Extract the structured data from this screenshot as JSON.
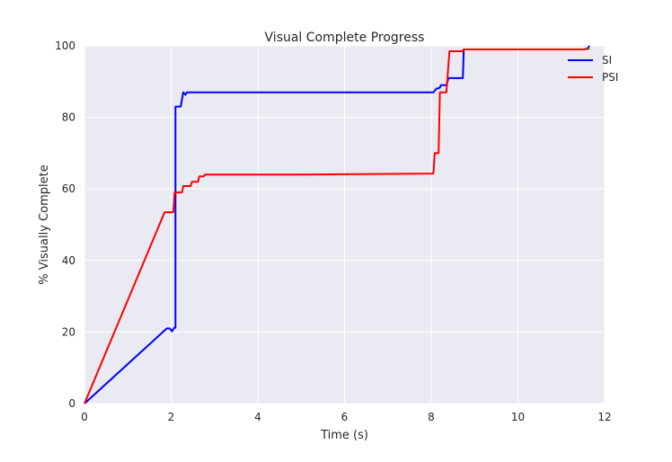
{
  "chart_data": {
    "type": "line",
    "title": "Visual Complete Progress",
    "xlabel": "Time (s)",
    "ylabel": "% Visually Complete",
    "xlim": [
      0,
      12
    ],
    "ylim": [
      0,
      100
    ],
    "xticks": [
      0,
      2,
      4,
      6,
      8,
      10,
      12
    ],
    "yticks": [
      0,
      20,
      40,
      60,
      80,
      100
    ],
    "xtick_labels": [
      "0",
      "2",
      "4",
      "6",
      "8",
      "10",
      "12"
    ],
    "ytick_labels": [
      "0",
      "20",
      "40",
      "60",
      "80",
      100
    ],
    "grid": true,
    "legend_position": "top-right",
    "background_color": "#eaeaf2",
    "series": [
      {
        "name": "SI",
        "color": "#0000ff",
        "points": [
          [
            0,
            0
          ],
          [
            1.9,
            21
          ],
          [
            1.97,
            21
          ],
          [
            2.02,
            20.2
          ],
          [
            2.07,
            21.2
          ],
          [
            2.1,
            21.2
          ],
          [
            2.1,
            83
          ],
          [
            2.22,
            83
          ],
          [
            2.28,
            87
          ],
          [
            2.33,
            86.3
          ],
          [
            2.36,
            87
          ],
          [
            4.5,
            87
          ],
          [
            8.05,
            87
          ],
          [
            8.12,
            88
          ],
          [
            8.2,
            88.3
          ],
          [
            8.22,
            89
          ],
          [
            8.35,
            89
          ],
          [
            8.4,
            91
          ],
          [
            8.73,
            91
          ],
          [
            8.75,
            99
          ],
          [
            11.5,
            99
          ],
          [
            11.6,
            99.2
          ],
          [
            11.65,
            100
          ]
        ]
      },
      {
        "name": "PSI",
        "color": "#ff0000",
        "points": [
          [
            0,
            0
          ],
          [
            1.85,
            53.5
          ],
          [
            2.05,
            53.5
          ],
          [
            2.08,
            59
          ],
          [
            2.25,
            59
          ],
          [
            2.28,
            60.8
          ],
          [
            2.45,
            60.8
          ],
          [
            2.48,
            62
          ],
          [
            2.62,
            62
          ],
          [
            2.65,
            63.5
          ],
          [
            2.75,
            63.5
          ],
          [
            2.78,
            64
          ],
          [
            5,
            64
          ],
          [
            8.05,
            64.3
          ],
          [
            8.08,
            70
          ],
          [
            8.17,
            70
          ],
          [
            8.2,
            87
          ],
          [
            8.35,
            87
          ],
          [
            8.42,
            98.5
          ],
          [
            8.72,
            98.5
          ],
          [
            8.75,
            99
          ],
          [
            11.5,
            99
          ],
          [
            11.65,
            99.2
          ]
        ]
      }
    ]
  }
}
